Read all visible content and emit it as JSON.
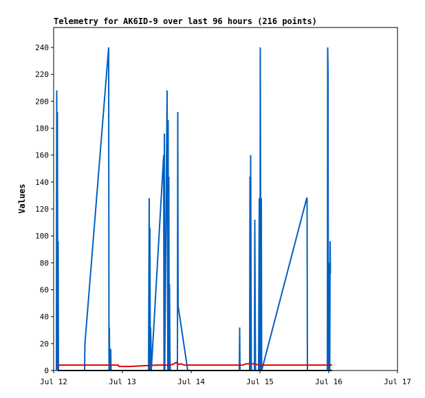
{
  "chart_data": {
    "type": "line",
    "title": "Telemetry for AK6ID-9 over last 96 hours (216 points)",
    "xlabel": "",
    "ylabel": "Values",
    "x_tick_labels": [
      "Jul 12",
      "Jul 13",
      "Jul 14",
      "Jul 15",
      "Jul 16",
      "Jul 17"
    ],
    "xlim": [
      0,
      5
    ],
    "y_ticks": [
      0,
      20,
      40,
      60,
      80,
      100,
      120,
      140,
      160,
      180,
      200,
      220,
      240
    ],
    "ylim": [
      0,
      255
    ],
    "grid": false,
    "legend": "none",
    "series": [
      {
        "color": "#0060c0",
        "points": [
          [
            0.04,
            0
          ],
          [
            0.045,
            208
          ],
          [
            0.05,
            0
          ],
          [
            0.055,
            192
          ],
          [
            0.06,
            0
          ],
          [
            0.065,
            96
          ],
          [
            0.07,
            0
          ],
          [
            0.45,
            0
          ],
          [
            0.455,
            20
          ],
          [
            0.8,
            240
          ],
          [
            0.805,
            0
          ],
          [
            0.81,
            32
          ],
          [
            0.815,
            0
          ],
          [
            0.82,
            16
          ],
          [
            0.825,
            0
          ],
          [
            0.83,
            16
          ],
          [
            0.835,
            0
          ],
          [
            1.38,
            0
          ],
          [
            1.385,
            64
          ],
          [
            1.39,
            128
          ],
          [
            1.395,
            0
          ],
          [
            1.4,
            106
          ],
          [
            1.405,
            0
          ],
          [
            1.41,
            32
          ],
          [
            1.415,
            20
          ],
          [
            1.42,
            0
          ],
          [
            1.6,
            160
          ],
          [
            1.605,
            0
          ],
          [
            1.61,
            176
          ],
          [
            1.615,
            0
          ],
          [
            1.65,
            208
          ],
          [
            1.655,
            104
          ],
          [
            1.66,
            0
          ],
          [
            1.665,
            186
          ],
          [
            1.67,
            0
          ],
          [
            1.675,
            144
          ],
          [
            1.68,
            0
          ],
          [
            1.685,
            64
          ],
          [
            1.69,
            20
          ],
          [
            1.695,
            0
          ],
          [
            1.8,
            0
          ],
          [
            1.805,
            192
          ],
          [
            1.81,
            48
          ],
          [
            1.95,
            0
          ],
          [
            2.7,
            0
          ],
          [
            2.705,
            32
          ],
          [
            2.71,
            0
          ],
          [
            2.85,
            0
          ],
          [
            2.855,
            144
          ],
          [
            2.86,
            0
          ],
          [
            2.865,
            160
          ],
          [
            2.87,
            80
          ],
          [
            2.875,
            0
          ],
          [
            2.92,
            0
          ],
          [
            2.925,
            112
          ],
          [
            2.93,
            56
          ],
          [
            2.935,
            0
          ],
          [
            2.98,
            0
          ],
          [
            2.985,
            64
          ],
          [
            2.99,
            128
          ],
          [
            2.995,
            32
          ],
          [
            3.0,
            0
          ],
          [
            3.005,
            240
          ],
          [
            3.01,
            120
          ],
          [
            3.015,
            0
          ],
          [
            3.02,
            128
          ],
          [
            3.025,
            0
          ],
          [
            3.68,
            128
          ],
          [
            3.685,
            128
          ],
          [
            3.69,
            0
          ],
          [
            3.98,
            0
          ],
          [
            3.985,
            240
          ],
          [
            3.99,
            224
          ],
          [
            3.995,
            0
          ],
          [
            4.0,
            80
          ],
          [
            4.005,
            24
          ],
          [
            4.01,
            70
          ],
          [
            4.015,
            0
          ],
          [
            4.02,
            96
          ],
          [
            4.025,
            72
          ]
        ]
      },
      {
        "color": "#e00000",
        "points": [
          [
            0.06,
            4
          ],
          [
            0.7,
            4
          ],
          [
            0.94,
            4
          ],
          [
            0.95,
            3
          ],
          [
            1.1,
            3
          ],
          [
            1.3,
            3.5
          ],
          [
            1.5,
            4
          ],
          [
            1.7,
            4
          ],
          [
            1.75,
            5
          ],
          [
            1.78,
            6
          ],
          [
            1.82,
            4.5
          ],
          [
            1.85,
            5
          ],
          [
            1.9,
            4
          ],
          [
            2.7,
            4
          ],
          [
            2.75,
            4
          ],
          [
            2.8,
            5
          ],
          [
            2.9,
            5
          ],
          [
            3.0,
            4
          ],
          [
            3.5,
            4
          ],
          [
            4.05,
            4
          ]
        ]
      },
      {
        "color": "#000000",
        "points": [
          [
            0.06,
            0
          ],
          [
            4.05,
            0
          ]
        ]
      }
    ]
  }
}
